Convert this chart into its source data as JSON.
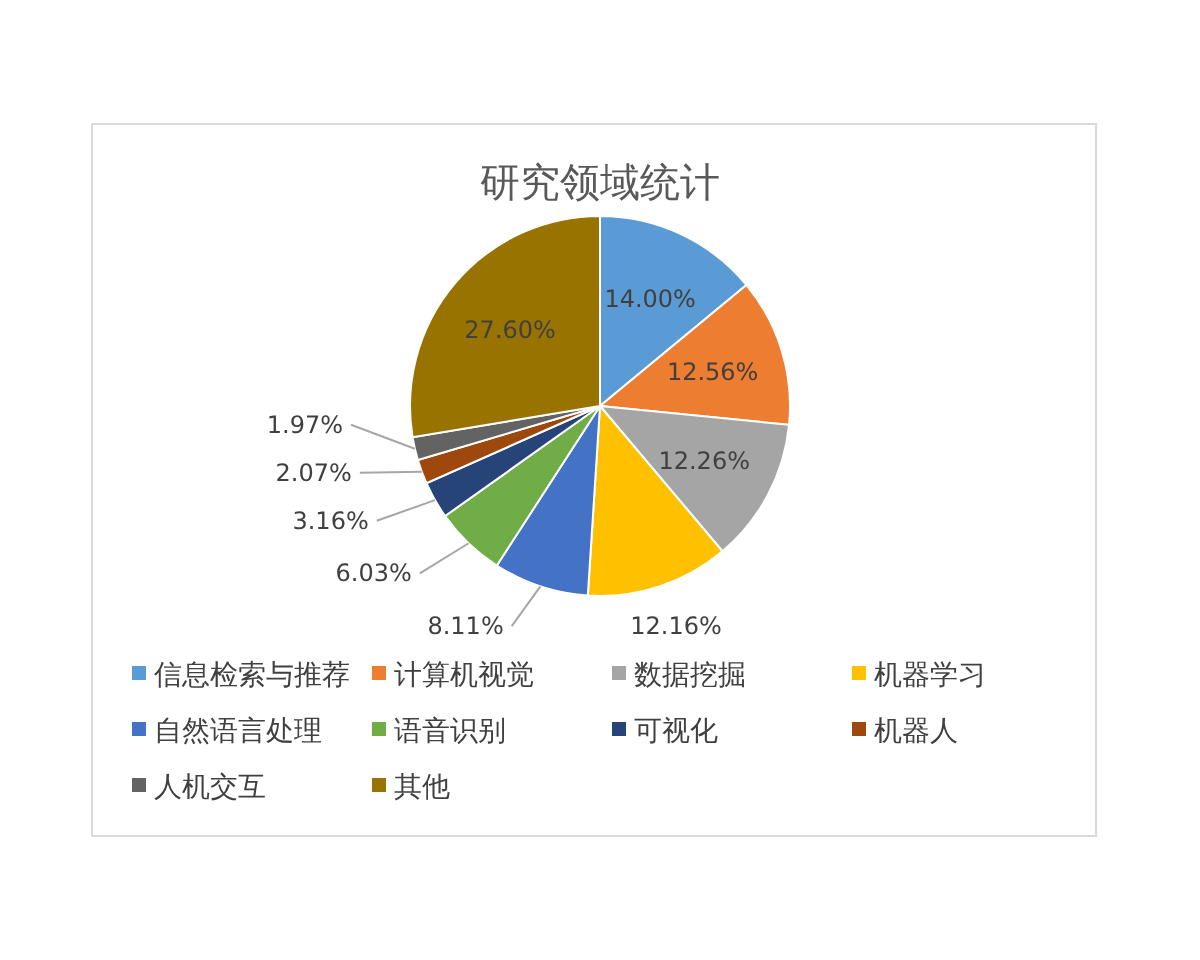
{
  "chart_data": {
    "type": "pie",
    "title": "研究领域统计",
    "categories": [
      "信息检索与推荐",
      "计算机视觉",
      "数据挖掘",
      "机器学习",
      "自然语言处理",
      "语音识别",
      "可视化",
      "机器人",
      "人机交互",
      "其他"
    ],
    "values": [
      14.0,
      12.56,
      12.26,
      12.16,
      8.11,
      6.03,
      3.16,
      2.07,
      1.97,
      27.6
    ],
    "colors": [
      "#5b9bd5",
      "#ed7d31",
      "#a5a5a5",
      "#ffc000",
      "#4472c4",
      "#70ad47",
      "#264478",
      "#9e480e",
      "#636363",
      "#997300"
    ],
    "value_labels": [
      "14.00%",
      "12.56%",
      "12.26%",
      "12.16%",
      "8.11%",
      "6.03%",
      "3.16%",
      "2.07%",
      "1.97%",
      "27.60%"
    ],
    "legend": "bottom"
  }
}
